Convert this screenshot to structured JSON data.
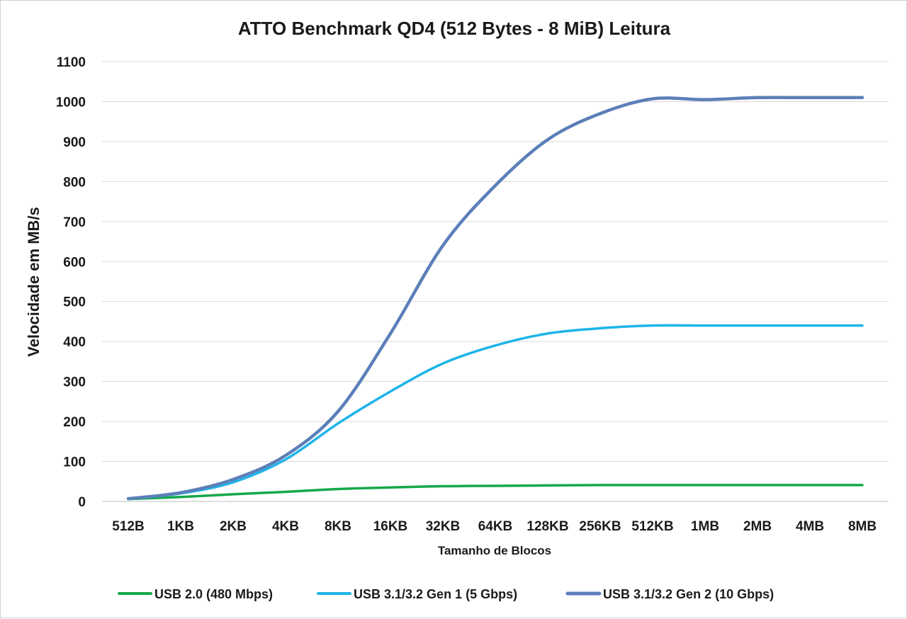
{
  "chart_data": {
    "type": "line",
    "title": "ATTO Benchmark QD4 (512 Bytes - 8 MiB) Leitura",
    "xlabel": "Tamanho de Blocos",
    "ylabel": "Velocidade em MB/s",
    "ylim": [
      0,
      1100
    ],
    "yticks": [
      0,
      100,
      200,
      300,
      400,
      500,
      600,
      700,
      800,
      900,
      1000,
      1100
    ],
    "grid": true,
    "legend_position": "bottom",
    "categories": [
      "512B",
      "1KB",
      "2KB",
      "4KB",
      "8KB",
      "16KB",
      "32KB",
      "64KB",
      "128KB",
      "256KB",
      "512KB",
      "1MB",
      "2MB",
      "4MB",
      "8MB"
    ],
    "series": [
      {
        "name": "USB 2.0 (480 Mbps)",
        "color": "#16a84a",
        "values": [
          6,
          11,
          18,
          24,
          31,
          35,
          38,
          39,
          40,
          41,
          41,
          41,
          41,
          41,
          41
        ]
      },
      {
        "name": "USB 3.1/3.2 Gen 1 (5 Gbps)",
        "color": "#1eb4e8",
        "values": [
          6,
          20,
          48,
          105,
          195,
          275,
          345,
          390,
          420,
          433,
          440,
          440,
          440,
          440,
          440
        ]
      },
      {
        "name": "USB 3.1/3.2 Gen 2 (10 Gbps)",
        "color": "#5b7fb8",
        "values": [
          7,
          22,
          55,
          115,
          225,
          420,
          640,
          790,
          905,
          970,
          1007,
          1005,
          1010,
          1010,
          1010
        ]
      }
    ]
  }
}
